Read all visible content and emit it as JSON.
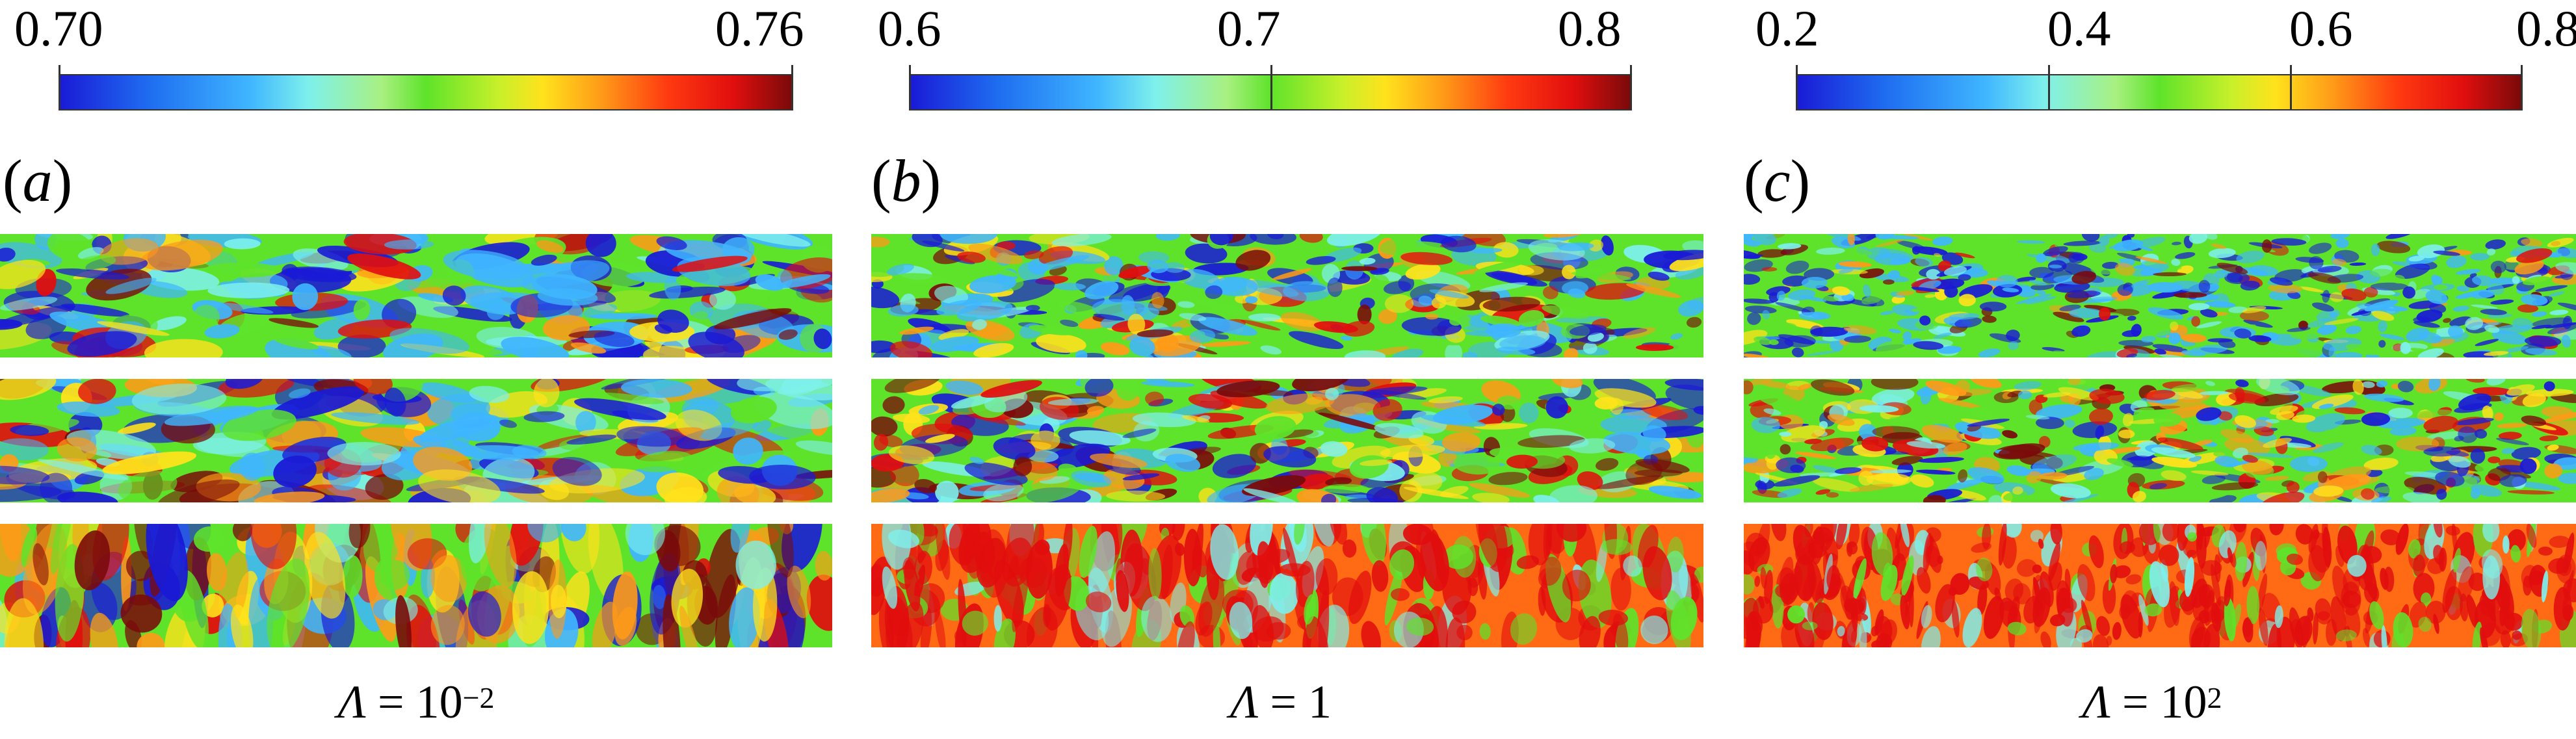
{
  "panels": [
    {
      "label_open": "(",
      "label_letter": "a",
      "label_close": ")",
      "colorbar": {
        "min": "0.70",
        "max": "0.76",
        "ticks": [
          "0.70",
          "0.76"
        ]
      },
      "param_symbol": "Λ",
      "param_eq": " = 10",
      "param_exp": "−2",
      "slices": 3
    },
    {
      "label_open": "(",
      "label_letter": "b",
      "label_close": ")",
      "colorbar": {
        "min": "0.6",
        "max": "0.8",
        "ticks": [
          "0.6",
          "0.7",
          "0.8"
        ]
      },
      "param_symbol": "Λ",
      "param_eq": " = 1",
      "param_exp": "",
      "slices": 3
    },
    {
      "label_open": "(",
      "label_letter": "c",
      "label_close": ")",
      "colorbar": {
        "min": "0.2",
        "max": "0.8",
        "ticks": [
          "0.2",
          "0.4",
          "0.6",
          "0.8"
        ]
      },
      "param_symbol": "Λ",
      "param_eq": " = 10",
      "param_exp": "2",
      "slices": 3
    }
  ],
  "colormap": [
    "#1a1ad6",
    "#3fb6ff",
    "#7ef0ec",
    "#5ee32a",
    "#ffe21c",
    "#ff9a18",
    "#e10e0e",
    "#7a0a0a"
  ]
}
